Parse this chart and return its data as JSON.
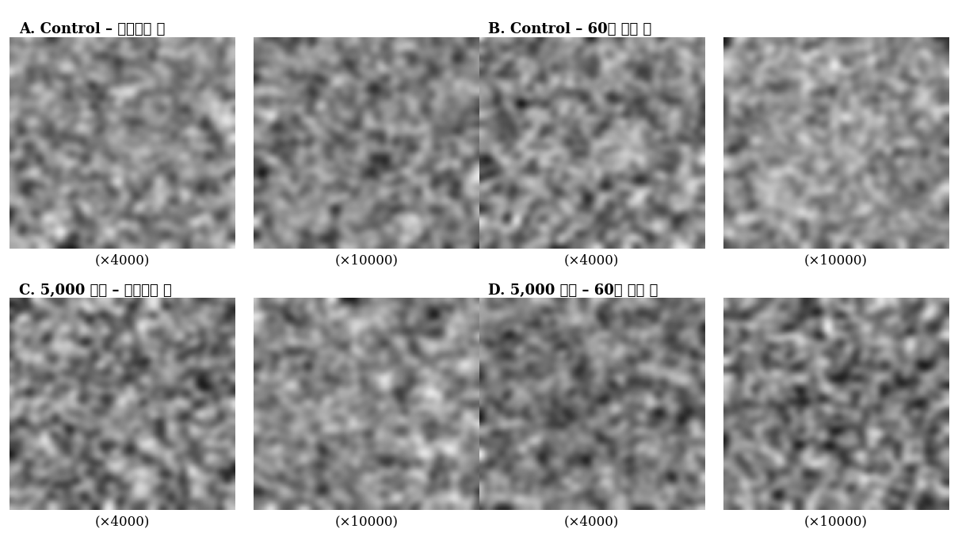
{
  "panel_labels": [
    "A. Control – 효소반응 전",
    "B. Control – 60분 반응 후",
    "C. 5,000 기압 – 효소반응 전",
    "D. 5,000 기압 – 60분 반응 후"
  ],
  "mag_labels_left": [
    "×4000）",
    "×4000）",
    "×4000）",
    "×4000）"
  ],
  "mag_labels_right": [
    "×10000）",
    "×10000）",
    "×10000）",
    "×10000）"
  ],
  "mag_left_text": "(×4000)",
  "mag_right_text": "(×10000)",
  "background_color": "#ffffff",
  "image_bg": "#808080",
  "label_fontsize": 13,
  "mag_fontsize": 12,
  "font_family": "serif"
}
